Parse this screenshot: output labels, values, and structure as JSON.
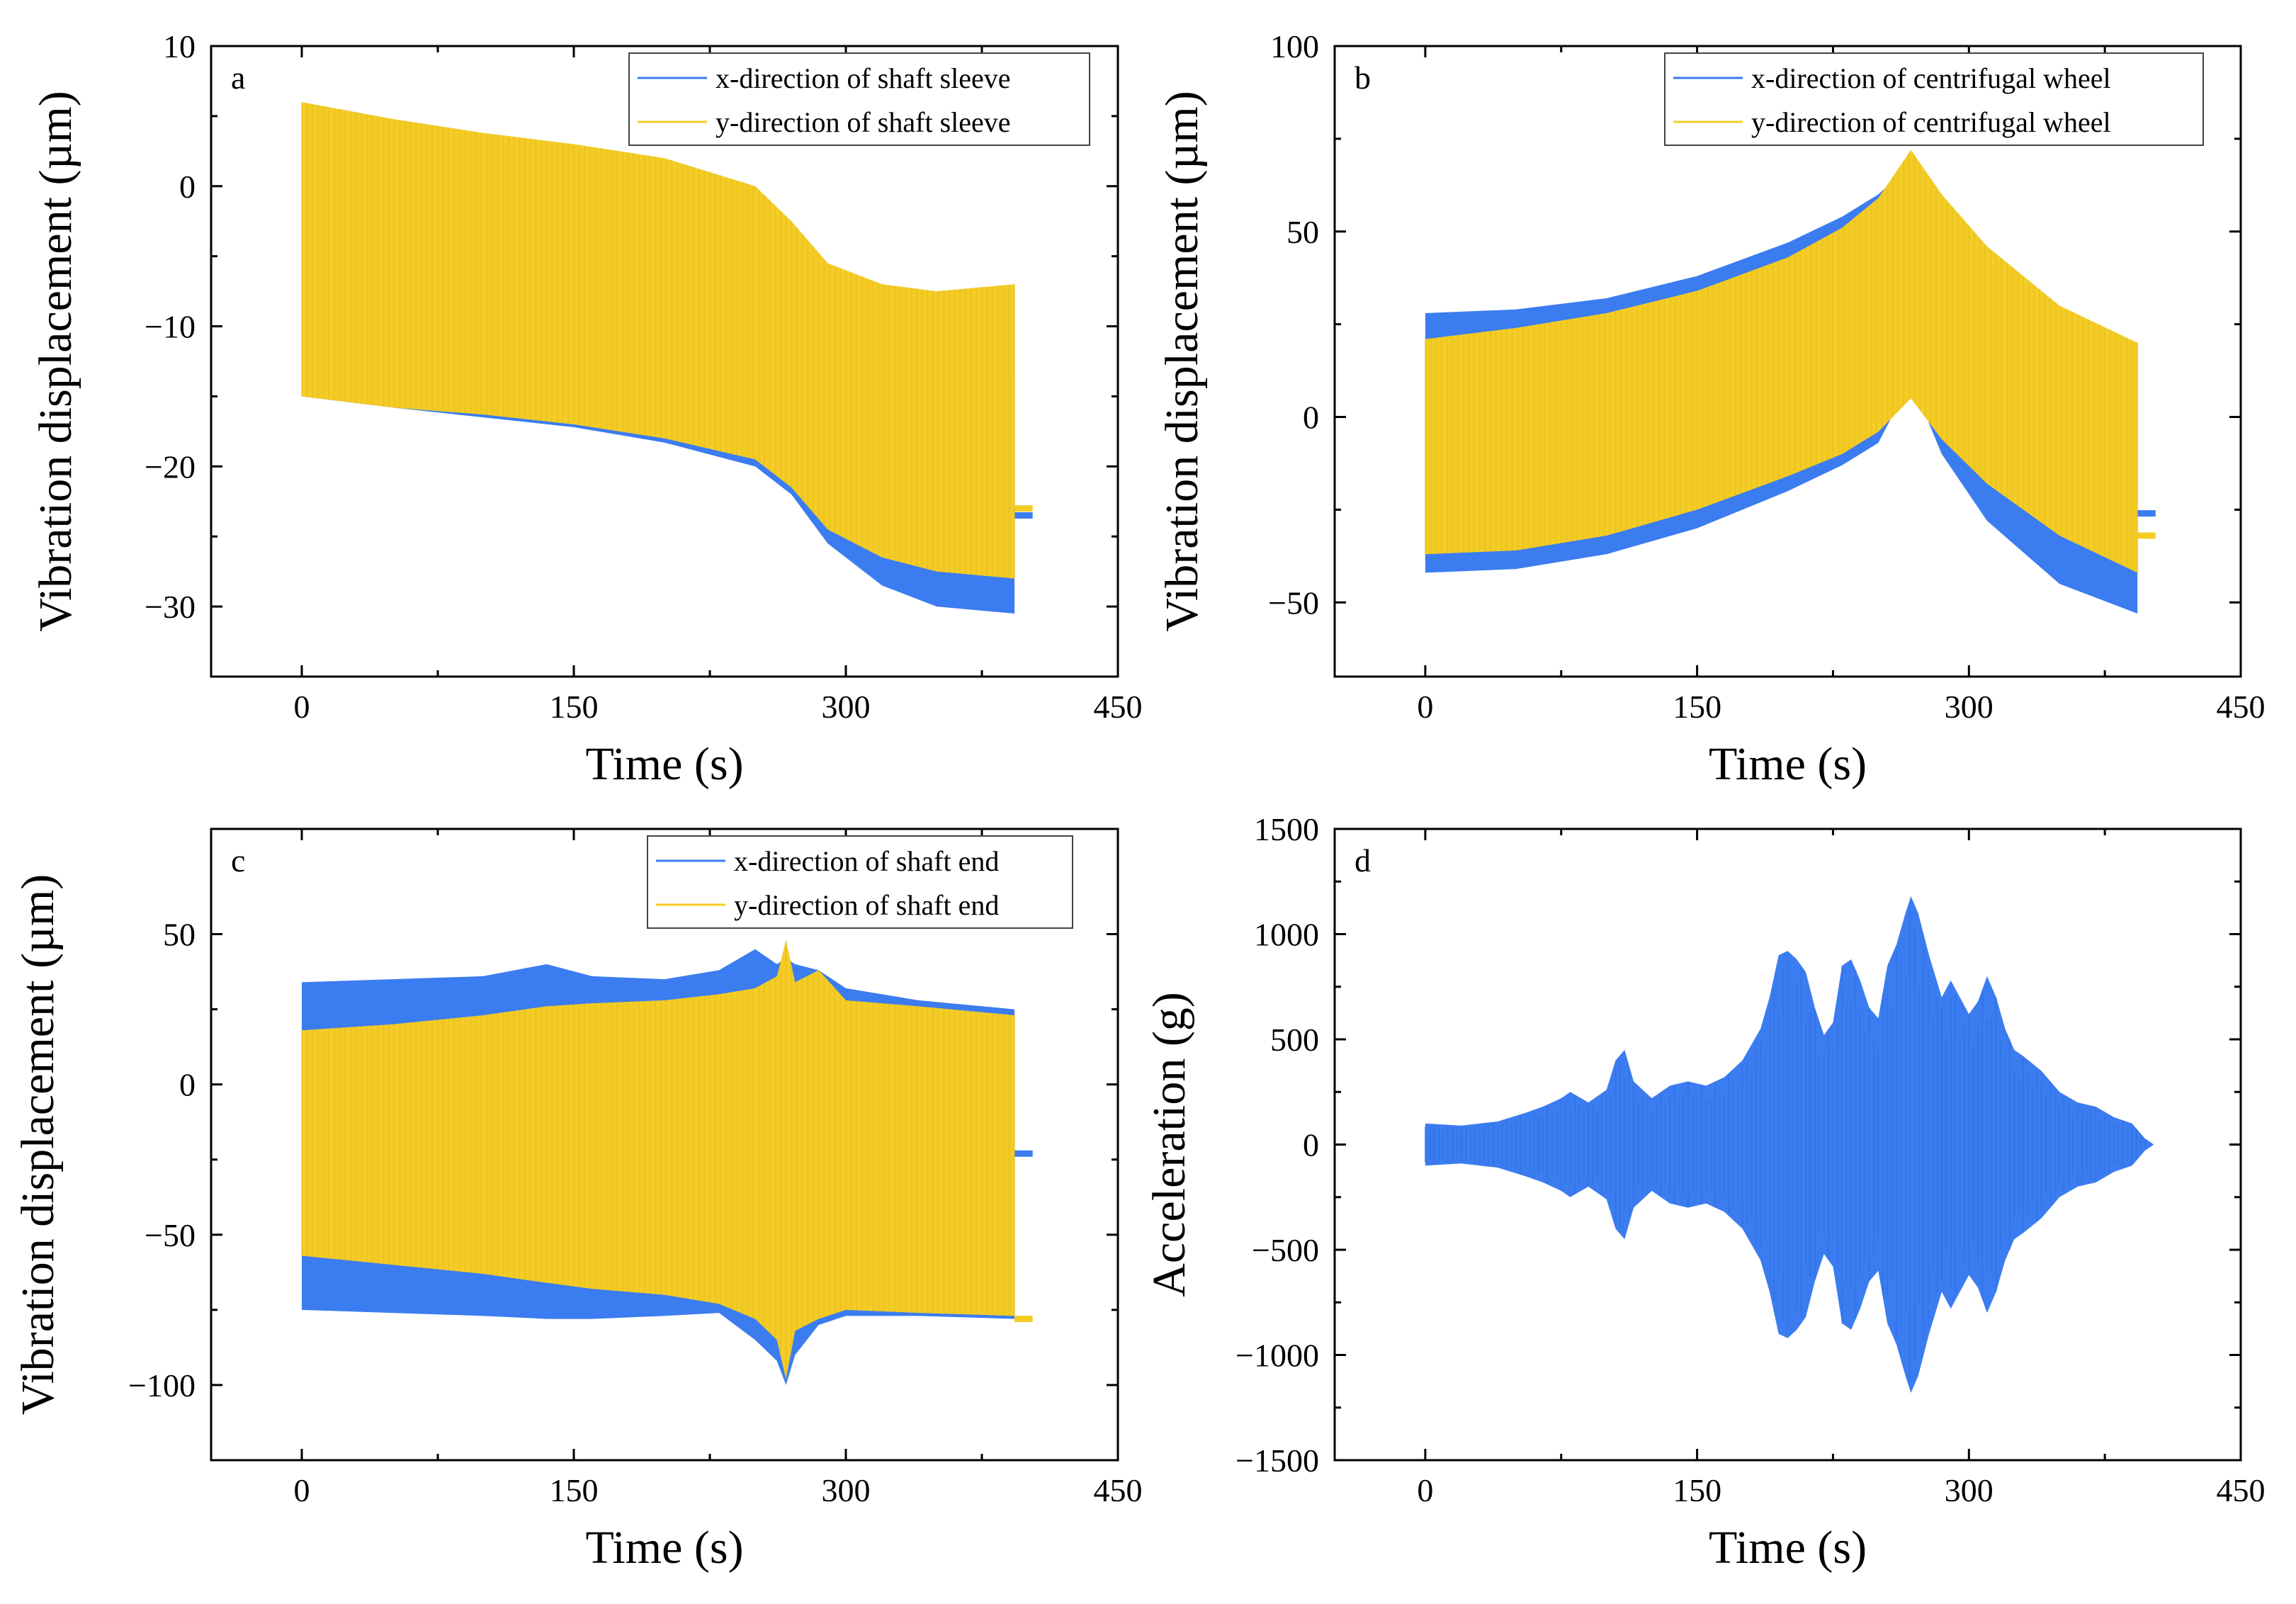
{
  "colors": {
    "x_series": "#3b7cf0",
    "y_series": "#f5cc24",
    "y_series_dark": "#dcb82a",
    "axis": "#000000",
    "legend_border": "#444444"
  },
  "chart_data": [
    {
      "panel": "a",
      "type": "area",
      "xlabel": "Time (s)",
      "ylabel": "Vibration displacement (µm)",
      "xlim": [
        -50,
        450
      ],
      "ylim": [
        -35,
        10
      ],
      "xticks": [
        0,
        150,
        300,
        450
      ],
      "yticks": [
        10,
        0,
        -10,
        -20,
        -30
      ],
      "ytick_labels": [
        "10",
        "0",
        "−10",
        "−20",
        "−30"
      ],
      "legend": [
        "x-direction of shaft sleeve",
        "y-direction of shaft sleeve"
      ],
      "legend_position": "top-right",
      "series": [
        {
          "name": "x-direction of shaft sleeve",
          "x": [
            0,
            50,
            100,
            150,
            200,
            250,
            270,
            290,
            320,
            350,
            393
          ],
          "upper": [
            5.5,
            4.2,
            3.0,
            1.5,
            0.0,
            -2.0,
            -4.5,
            -8.5,
            -11.5,
            -12.5,
            -13.0
          ],
          "lower": [
            -15.0,
            -15.8,
            -16.5,
            -17.2,
            -18.3,
            -20.0,
            -22.0,
            -25.5,
            -28.5,
            -30.0,
            -30.5
          ],
          "tail_x": [
            393,
            403
          ],
          "tail_y": [
            -23.5,
            -23.5
          ]
        },
        {
          "name": "y-direction of shaft sleeve",
          "x": [
            0,
            50,
            100,
            150,
            200,
            250,
            270,
            290,
            320,
            350,
            393
          ],
          "upper": [
            6.0,
            4.8,
            3.8,
            3.0,
            2.0,
            0.0,
            -2.5,
            -5.5,
            -7.0,
            -7.5,
            -7.0
          ],
          "lower": [
            -15.0,
            -15.8,
            -16.3,
            -17.0,
            -18.0,
            -19.5,
            -21.5,
            -24.5,
            -26.5,
            -27.5,
            -28.0
          ],
          "tail_x": [
            393,
            403
          ],
          "tail_y": [
            -23.0,
            -23.0
          ]
        }
      ]
    },
    {
      "panel": "b",
      "type": "area",
      "xlabel": "Time (s)",
      "ylabel": "Vibration displacement (µm)",
      "xlim": [
        -50,
        450
      ],
      "ylim": [
        -70,
        100
      ],
      "xticks": [
        0,
        150,
        300,
        450
      ],
      "yticks": [
        100,
        50,
        0,
        -50
      ],
      "ytick_labels": [
        "100",
        "50",
        "0",
        "−50"
      ],
      "legend": [
        "x-direction of centrifugal wheel",
        "y-direction of centrifugal wheel"
      ],
      "legend_position": "top-right",
      "series": [
        {
          "name": "x-direction of centrifugal wheel",
          "x": [
            0,
            50,
            100,
            150,
            200,
            230,
            250,
            268,
            285,
            310,
            350,
            393
          ],
          "upper": [
            28,
            29,
            32,
            38,
            47,
            54,
            60,
            68,
            58,
            45,
            28,
            20
          ],
          "lower": [
            -42,
            -41,
            -37,
            -30,
            -20,
            -13,
            -7,
            10,
            -10,
            -28,
            -45,
            -53
          ],
          "tail_x": [
            393,
            403
          ],
          "tail_y": [
            -26,
            -26
          ]
        },
        {
          "name": "y-direction of centrifugal wheel",
          "x": [
            0,
            50,
            100,
            150,
            200,
            230,
            250,
            268,
            285,
            310,
            350,
            393
          ],
          "upper": [
            21,
            24,
            28,
            34,
            43,
            51,
            59,
            72,
            60,
            46,
            30,
            20
          ],
          "lower": [
            -37,
            -36,
            -32,
            -25,
            -16,
            -10,
            -4,
            5,
            -6,
            -18,
            -32,
            -42
          ],
          "tail_x": [
            393,
            403
          ],
          "tail_y": [
            -32,
            -32
          ]
        }
      ]
    },
    {
      "panel": "c",
      "type": "area",
      "xlabel": "Time (s)",
      "ylabel": "Vibration displacement (µm)",
      "xlim": [
        -50,
        450
      ],
      "ylim": [
        -125,
        85
      ],
      "xticks": [
        0,
        150,
        300,
        450
      ],
      "yticks": [
        50,
        0,
        -50,
        -100
      ],
      "ytick_labels": [
        "50",
        "0",
        "−50",
        "−100"
      ],
      "legend": [
        "x-direction of shaft end",
        "y-direction of shaft end"
      ],
      "legend_position": "top-right",
      "series": [
        {
          "name": "x-direction of shaft end",
          "x": [
            0,
            50,
            100,
            135,
            160,
            200,
            230,
            250,
            262,
            267,
            272,
            285,
            300,
            340,
            393
          ],
          "upper": [
            34,
            35,
            36,
            40,
            36,
            35,
            38,
            45,
            40,
            42,
            40,
            38,
            32,
            28,
            25
          ],
          "lower": [
            -75,
            -76,
            -77,
            -78,
            -78,
            -77,
            -76,
            -85,
            -92,
            -100,
            -90,
            -80,
            -77,
            -77,
            -78
          ],
          "tail_x": [
            393,
            403
          ],
          "tail_y": [
            -23,
            -23
          ]
        },
        {
          "name": "y-direction of shaft end",
          "x": [
            0,
            50,
            100,
            135,
            160,
            200,
            230,
            250,
            262,
            267,
            272,
            285,
            300,
            340,
            393
          ],
          "upper": [
            18,
            20,
            23,
            26,
            27,
            28,
            30,
            32,
            36,
            48,
            34,
            38,
            28,
            26,
            23
          ],
          "lower": [
            -57,
            -60,
            -63,
            -66,
            -68,
            -70,
            -73,
            -78,
            -85,
            -98,
            -82,
            -78,
            -75,
            -76,
            -77
          ],
          "tail_x": [
            393,
            403
          ],
          "tail_y": [
            -78,
            -78
          ]
        }
      ]
    },
    {
      "panel": "d",
      "type": "area",
      "xlabel": "Time (s)",
      "ylabel": "Acceleration (g)",
      "xlim": [
        -50,
        450
      ],
      "ylim": [
        -1500,
        1500
      ],
      "xticks": [
        0,
        150,
        300,
        450
      ],
      "yticks": [
        1500,
        1000,
        500,
        0,
        -500,
        -1000,
        -1500
      ],
      "ytick_labels": [
        "1500",
        "1000",
        "500",
        "0",
        "−500",
        "−1000",
        "−1500"
      ],
      "legend": [],
      "series": [
        {
          "name": "acceleration",
          "x": [
            0,
            20,
            40,
            55,
            65,
            75,
            80,
            90,
            100,
            105,
            110,
            115,
            125,
            135,
            145,
            155,
            165,
            175,
            185,
            190,
            195,
            200,
            205,
            210,
            215,
            220,
            225,
            230,
            235,
            240,
            245,
            250,
            255,
            260,
            265,
            268,
            272,
            278,
            285,
            290,
            295,
            300,
            305,
            310,
            315,
            320,
            325,
            330,
            340,
            350,
            360,
            370,
            380,
            390,
            397,
            402
          ],
          "amplitude": [
            100,
            90,
            110,
            150,
            180,
            220,
            250,
            200,
            260,
            400,
            450,
            300,
            220,
            280,
            300,
            280,
            320,
            400,
            550,
            700,
            900,
            920,
            880,
            820,
            650,
            520,
            580,
            850,
            880,
            780,
            650,
            600,
            850,
            950,
            1100,
            1180,
            1100,
            900,
            700,
            780,
            700,
            620,
            680,
            800,
            700,
            550,
            450,
            420,
            350,
            250,
            200,
            180,
            130,
            100,
            30,
            0
          ]
        }
      ]
    }
  ]
}
